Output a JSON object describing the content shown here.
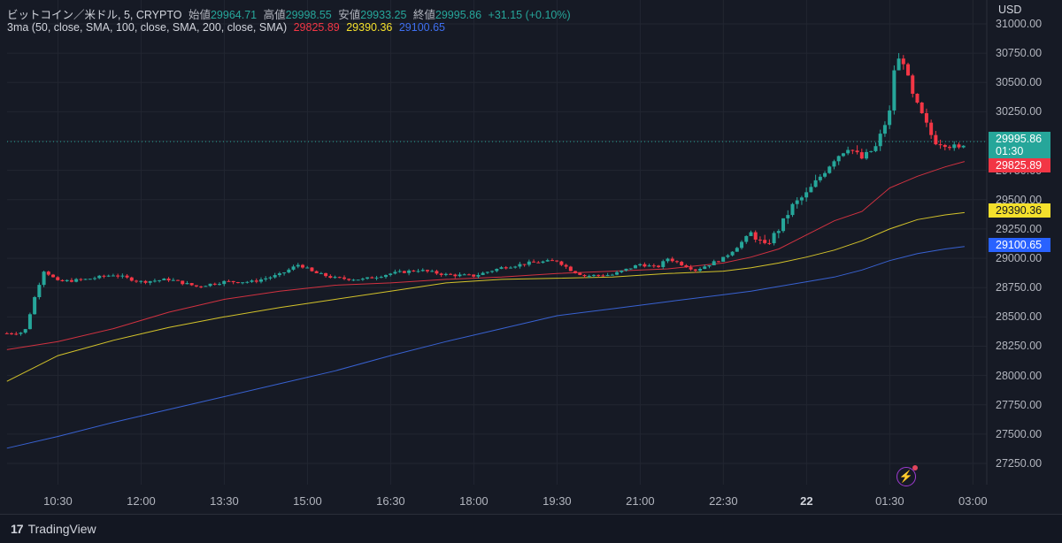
{
  "header": {
    "symbol": "ビットコイン／米ドル, 5, CRYPTO",
    "open_label": "始値",
    "open": "29964.71",
    "high_label": "高値",
    "high": "29998.55",
    "low_label": "安値",
    "low": "29933.25",
    "close_label": "終値",
    "close": "29995.86",
    "change": "+31.15 (+0.10%)"
  },
  "indicator": {
    "name": "3ma (50, close, SMA, 100, close, SMA, 200, close, SMA)",
    "ma50": "29825.89",
    "ma100": "29390.36",
    "ma200": "29100.65"
  },
  "price_axis": {
    "currency": "USD",
    "ticks": [
      "31000.00",
      "30750.00",
      "30500.00",
      "30250.00",
      "30000.00",
      "29750.00",
      "29500.00",
      "29250.00",
      "29000.00",
      "28750.00",
      "28500.00",
      "28250.00",
      "28000.00",
      "27750.00",
      "27500.00",
      "27250.00"
    ]
  },
  "badges": {
    "last_price": "29995.86",
    "countdown": "01:30",
    "ma50": "29825.89",
    "ma100": "29390.36",
    "ma200": "29100.65"
  },
  "time_axis": [
    "10:30",
    "12:00",
    "13:30",
    "15:00",
    "16:30",
    "18:00",
    "19:30",
    "21:00",
    "22:30",
    "22",
    "01:30",
    "03:00"
  ],
  "branding": "TradingView",
  "colors": {
    "background": "#161a25",
    "up": "#26a69a",
    "down": "#f23645",
    "ma50": "#f23645",
    "ma100": "#f4e02c",
    "ma200": "#3e6ff0"
  },
  "chart_data": {
    "type": "candlestick",
    "title": "ビットコイン／米ドル, 5, CRYPTO",
    "ylim": [
      27150,
      31050
    ],
    "x_range_hours": [
      9.583,
      27.25
    ],
    "grid": true,
    "candle_path": [
      [
        9.58,
        28360
      ],
      [
        9.9,
        28370
      ],
      [
        10.1,
        28700
      ],
      [
        10.25,
        28900
      ],
      [
        10.5,
        28800
      ],
      [
        11.0,
        28820
      ],
      [
        11.5,
        28860
      ],
      [
        12.0,
        28800
      ],
      [
        12.5,
        28820
      ],
      [
        13.0,
        28760
      ],
      [
        13.5,
        28800
      ],
      [
        14.0,
        28800
      ],
      [
        14.5,
        28860
      ],
      [
        14.85,
        28950
      ],
      [
        15.1,
        28880
      ],
      [
        15.5,
        28830
      ],
      [
        16.0,
        28820
      ],
      [
        16.5,
        28870
      ],
      [
        17.0,
        28900
      ],
      [
        17.5,
        28860
      ],
      [
        18.0,
        28850
      ],
      [
        18.5,
        28920
      ],
      [
        19.0,
        28960
      ],
      [
        19.5,
        28980
      ],
      [
        19.75,
        28900
      ],
      [
        20.0,
        28850
      ],
      [
        20.5,
        28860
      ],
      [
        21.0,
        28950
      ],
      [
        21.3,
        28920
      ],
      [
        21.5,
        29000
      ],
      [
        21.75,
        28950
      ],
      [
        22.0,
        28900
      ],
      [
        22.5,
        29000
      ],
      [
        22.75,
        29100
      ],
      [
        23.0,
        29220
      ],
      [
        23.25,
        29100
      ],
      [
        23.5,
        29250
      ],
      [
        23.75,
        29450
      ],
      [
        24.0,
        29550
      ],
      [
        24.25,
        29700
      ],
      [
        24.5,
        29850
      ],
      [
        24.75,
        29950
      ],
      [
        25.0,
        29850
      ],
      [
        25.25,
        29950
      ],
      [
        25.5,
        30250
      ],
      [
        25.6,
        30700
      ],
      [
        25.75,
        30680
      ],
      [
        25.9,
        30400
      ],
      [
        26.1,
        30200
      ],
      [
        26.3,
        30000
      ],
      [
        26.5,
        29980
      ],
      [
        26.75,
        29930
      ],
      [
        26.85,
        29996
      ]
    ],
    "ma50": [
      [
        9.58,
        28220
      ],
      [
        10.5,
        28290
      ],
      [
        11.5,
        28400
      ],
      [
        12.5,
        28540
      ],
      [
        13.5,
        28650
      ],
      [
        14.5,
        28720
      ],
      [
        15.5,
        28770
      ],
      [
        16.5,
        28790
      ],
      [
        17.5,
        28820
      ],
      [
        18.5,
        28840
      ],
      [
        19.5,
        28870
      ],
      [
        20.5,
        28890
      ],
      [
        21.5,
        28910
      ],
      [
        22.5,
        28960
      ],
      [
        23.0,
        29010
      ],
      [
        23.5,
        29080
      ],
      [
        24.0,
        29200
      ],
      [
        24.5,
        29320
      ],
      [
        25.0,
        29400
      ],
      [
        25.5,
        29600
      ],
      [
        26.0,
        29700
      ],
      [
        26.5,
        29780
      ],
      [
        26.85,
        29826
      ]
    ],
    "ma100": [
      [
        9.58,
        27950
      ],
      [
        10.5,
        28170
      ],
      [
        11.5,
        28300
      ],
      [
        12.5,
        28410
      ],
      [
        13.5,
        28500
      ],
      [
        14.5,
        28580
      ],
      [
        15.5,
        28650
      ],
      [
        16.5,
        28720
      ],
      [
        17.5,
        28790
      ],
      [
        18.5,
        28820
      ],
      [
        19.5,
        28830
      ],
      [
        20.5,
        28840
      ],
      [
        21.5,
        28870
      ],
      [
        22.5,
        28890
      ],
      [
        23.0,
        28920
      ],
      [
        23.5,
        28960
      ],
      [
        24.0,
        29010
      ],
      [
        24.5,
        29070
      ],
      [
        25.0,
        29150
      ],
      [
        25.5,
        29250
      ],
      [
        26.0,
        29330
      ],
      [
        26.5,
        29370
      ],
      [
        26.85,
        29390
      ]
    ],
    "ma200": [
      [
        9.58,
        27380
      ],
      [
        10.5,
        27480
      ],
      [
        11.5,
        27600
      ],
      [
        12.5,
        27710
      ],
      [
        13.5,
        27820
      ],
      [
        14.5,
        27930
      ],
      [
        15.5,
        28040
      ],
      [
        16.5,
        28170
      ],
      [
        17.5,
        28290
      ],
      [
        18.5,
        28400
      ],
      [
        19.5,
        28510
      ],
      [
        20.5,
        28570
      ],
      [
        21.5,
        28630
      ],
      [
        22.5,
        28690
      ],
      [
        23.0,
        28720
      ],
      [
        23.5,
        28760
      ],
      [
        24.0,
        28800
      ],
      [
        24.5,
        28840
      ],
      [
        25.0,
        28900
      ],
      [
        25.5,
        28980
      ],
      [
        26.0,
        29040
      ],
      [
        26.5,
        29080
      ],
      [
        26.85,
        29101
      ]
    ]
  }
}
